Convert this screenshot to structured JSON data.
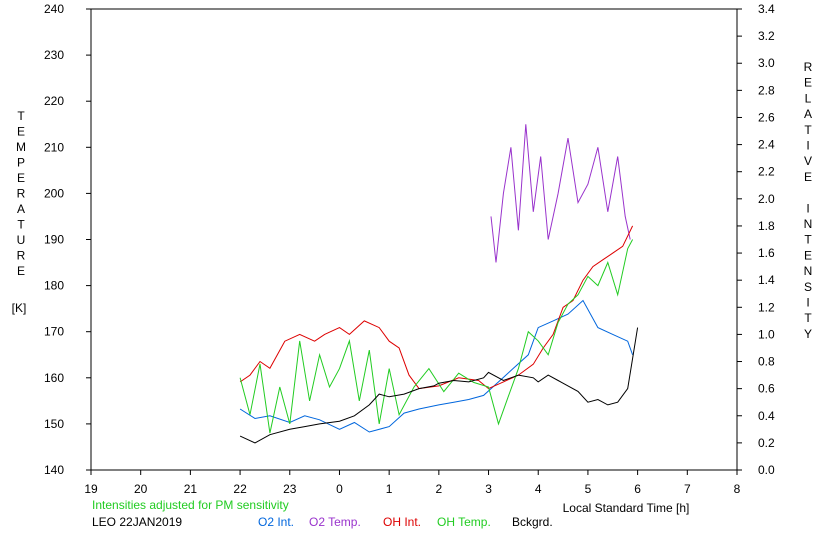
{
  "chart_data": {
    "type": "line",
    "left_axis": {
      "title": "TEMPERATURE",
      "unit": "[K]",
      "ylim": [
        140,
        240
      ],
      "ticks": [
        "140",
        "150",
        "160",
        "170",
        "180",
        "190",
        "200",
        "210",
        "220",
        "230",
        "240"
      ]
    },
    "right_axis": {
      "title": "RELATIVE INTENSITY",
      "ylim": [
        0.0,
        3.4
      ],
      "ticks": [
        "0.0",
        "0.2",
        "0.4",
        "0.6",
        "0.8",
        "1.0",
        "1.2",
        "1.4",
        "1.6",
        "1.8",
        "2.0",
        "2.2",
        "2.4",
        "2.6",
        "2.8",
        "3.0",
        "3.2",
        "3.4"
      ]
    },
    "x_axis": {
      "xlabel": "Local Standard Time [h]",
      "ticks": [
        "19",
        "20",
        "21",
        "22",
        "23",
        "0",
        "1",
        "2",
        "3",
        "4",
        "5",
        "6",
        "7",
        "8"
      ]
    },
    "note": "Intensities adjusted for PM sensitivity",
    "station": "LEO 22JAN2019",
    "legend": [
      {
        "name": "O2 Int.",
        "color": "#0066dd"
      },
      {
        "name": "O2 Temp.",
        "color": "#9933cc"
      },
      {
        "name": "OH Int.",
        "color": "#dd0000"
      },
      {
        "name": "OH Temp.",
        "color": "#22cc22"
      },
      {
        "name": "Bckgrd.",
        "color": "#000000"
      }
    ],
    "series": [
      {
        "name": "O2 Int.",
        "axis": "right",
        "color": "#0066dd",
        "points": [
          [
            22.0,
            0.45
          ],
          [
            22.3,
            0.38
          ],
          [
            22.6,
            0.4
          ],
          [
            23.0,
            0.35
          ],
          [
            23.3,
            0.4
          ],
          [
            23.6,
            0.37
          ],
          [
            24.0,
            0.3
          ],
          [
            24.3,
            0.35
          ],
          [
            24.6,
            0.28
          ],
          [
            25.0,
            0.32
          ],
          [
            25.3,
            0.42
          ],
          [
            25.6,
            0.45
          ],
          [
            26.0,
            0.48
          ],
          [
            26.3,
            0.5
          ],
          [
            26.6,
            0.52
          ],
          [
            26.9,
            0.55
          ],
          [
            27.2,
            0.65
          ],
          [
            27.5,
            0.75
          ],
          [
            27.8,
            0.85
          ],
          [
            28.0,
            1.05
          ],
          [
            28.3,
            1.1
          ],
          [
            28.6,
            1.15
          ],
          [
            28.9,
            1.25
          ],
          [
            29.2,
            1.05
          ],
          [
            29.5,
            1.0
          ],
          [
            29.8,
            0.95
          ],
          [
            29.9,
            0.85
          ]
        ]
      },
      {
        "name": "O2 Temp.",
        "axis": "left",
        "color": "#9933cc",
        "points": [
          [
            27.05,
            195
          ],
          [
            27.15,
            185
          ],
          [
            27.3,
            200
          ],
          [
            27.45,
            210
          ],
          [
            27.6,
            192
          ],
          [
            27.75,
            215
          ],
          [
            27.9,
            196
          ],
          [
            28.05,
            208
          ],
          [
            28.2,
            190
          ],
          [
            28.4,
            200
          ],
          [
            28.6,
            212
          ],
          [
            28.8,
            198
          ],
          [
            29.0,
            202
          ],
          [
            29.2,
            210
          ],
          [
            29.4,
            196
          ],
          [
            29.6,
            208
          ],
          [
            29.75,
            195
          ],
          [
            29.85,
            190
          ]
        ]
      },
      {
        "name": "OH Int.",
        "axis": "right",
        "color": "#dd0000",
        "points": [
          [
            22.0,
            0.65
          ],
          [
            22.2,
            0.7
          ],
          [
            22.4,
            0.8
          ],
          [
            22.6,
            0.75
          ],
          [
            22.9,
            0.95
          ],
          [
            23.2,
            1.0
          ],
          [
            23.5,
            0.95
          ],
          [
            23.7,
            1.0
          ],
          [
            24.0,
            1.05
          ],
          [
            24.2,
            1.0
          ],
          [
            24.5,
            1.1
          ],
          [
            24.8,
            1.05
          ],
          [
            25.0,
            0.95
          ],
          [
            25.2,
            0.9
          ],
          [
            25.4,
            0.7
          ],
          [
            25.6,
            0.6
          ],
          [
            26.0,
            0.62
          ],
          [
            26.4,
            0.68
          ],
          [
            26.8,
            0.66
          ],
          [
            27.0,
            0.6
          ],
          [
            27.3,
            0.65
          ],
          [
            27.6,
            0.7
          ],
          [
            27.9,
            0.78
          ],
          [
            28.1,
            0.9
          ],
          [
            28.3,
            1.0
          ],
          [
            28.5,
            1.2
          ],
          [
            28.7,
            1.25
          ],
          [
            28.9,
            1.4
          ],
          [
            29.1,
            1.5
          ],
          [
            29.3,
            1.55
          ],
          [
            29.5,
            1.6
          ],
          [
            29.7,
            1.65
          ],
          [
            29.9,
            1.8
          ]
        ]
      },
      {
        "name": "OH Temp.",
        "axis": "left",
        "color": "#22cc22",
        "points": [
          [
            22.0,
            160
          ],
          [
            22.2,
            152
          ],
          [
            22.4,
            163
          ],
          [
            22.6,
            148
          ],
          [
            22.8,
            158
          ],
          [
            23.0,
            150
          ],
          [
            23.2,
            168
          ],
          [
            23.4,
            155
          ],
          [
            23.6,
            165
          ],
          [
            23.8,
            158
          ],
          [
            24.0,
            162
          ],
          [
            24.2,
            168
          ],
          [
            24.4,
            155
          ],
          [
            24.6,
            166
          ],
          [
            24.8,
            150
          ],
          [
            25.0,
            162
          ],
          [
            25.2,
            152
          ],
          [
            25.5,
            158
          ],
          [
            25.8,
            162
          ],
          [
            26.1,
            157
          ],
          [
            26.4,
            161
          ],
          [
            26.7,
            159
          ],
          [
            27.0,
            158
          ],
          [
            27.2,
            150
          ],
          [
            27.4,
            156
          ],
          [
            27.6,
            162
          ],
          [
            27.8,
            170
          ],
          [
            28.0,
            168
          ],
          [
            28.2,
            165
          ],
          [
            28.4,
            172
          ],
          [
            28.6,
            176
          ],
          [
            28.8,
            178
          ],
          [
            29.0,
            182
          ],
          [
            29.2,
            180
          ],
          [
            29.4,
            185
          ],
          [
            29.6,
            178
          ],
          [
            29.8,
            188
          ],
          [
            29.9,
            190
          ]
        ]
      },
      {
        "name": "Bckgrd.",
        "axis": "right",
        "color": "#000000",
        "points": [
          [
            22.0,
            0.25
          ],
          [
            22.3,
            0.2
          ],
          [
            22.6,
            0.26
          ],
          [
            23.0,
            0.3
          ],
          [
            23.3,
            0.32
          ],
          [
            23.6,
            0.34
          ],
          [
            24.0,
            0.36
          ],
          [
            24.3,
            0.4
          ],
          [
            24.6,
            0.48
          ],
          [
            24.8,
            0.56
          ],
          [
            25.0,
            0.54
          ],
          [
            25.3,
            0.56
          ],
          [
            25.6,
            0.6
          ],
          [
            25.9,
            0.62
          ],
          [
            26.0,
            0.64
          ],
          [
            26.3,
            0.66
          ],
          [
            26.6,
            0.65
          ],
          [
            26.9,
            0.68
          ],
          [
            27.0,
            0.72
          ],
          [
            27.3,
            0.66
          ],
          [
            27.6,
            0.7
          ],
          [
            27.9,
            0.68
          ],
          [
            28.0,
            0.65
          ],
          [
            28.2,
            0.7
          ],
          [
            28.4,
            0.66
          ],
          [
            28.6,
            0.62
          ],
          [
            28.8,
            0.58
          ],
          [
            29.0,
            0.5
          ],
          [
            29.2,
            0.52
          ],
          [
            29.4,
            0.48
          ],
          [
            29.6,
            0.5
          ],
          [
            29.8,
            0.6
          ],
          [
            30.0,
            1.05
          ]
        ]
      }
    ]
  }
}
